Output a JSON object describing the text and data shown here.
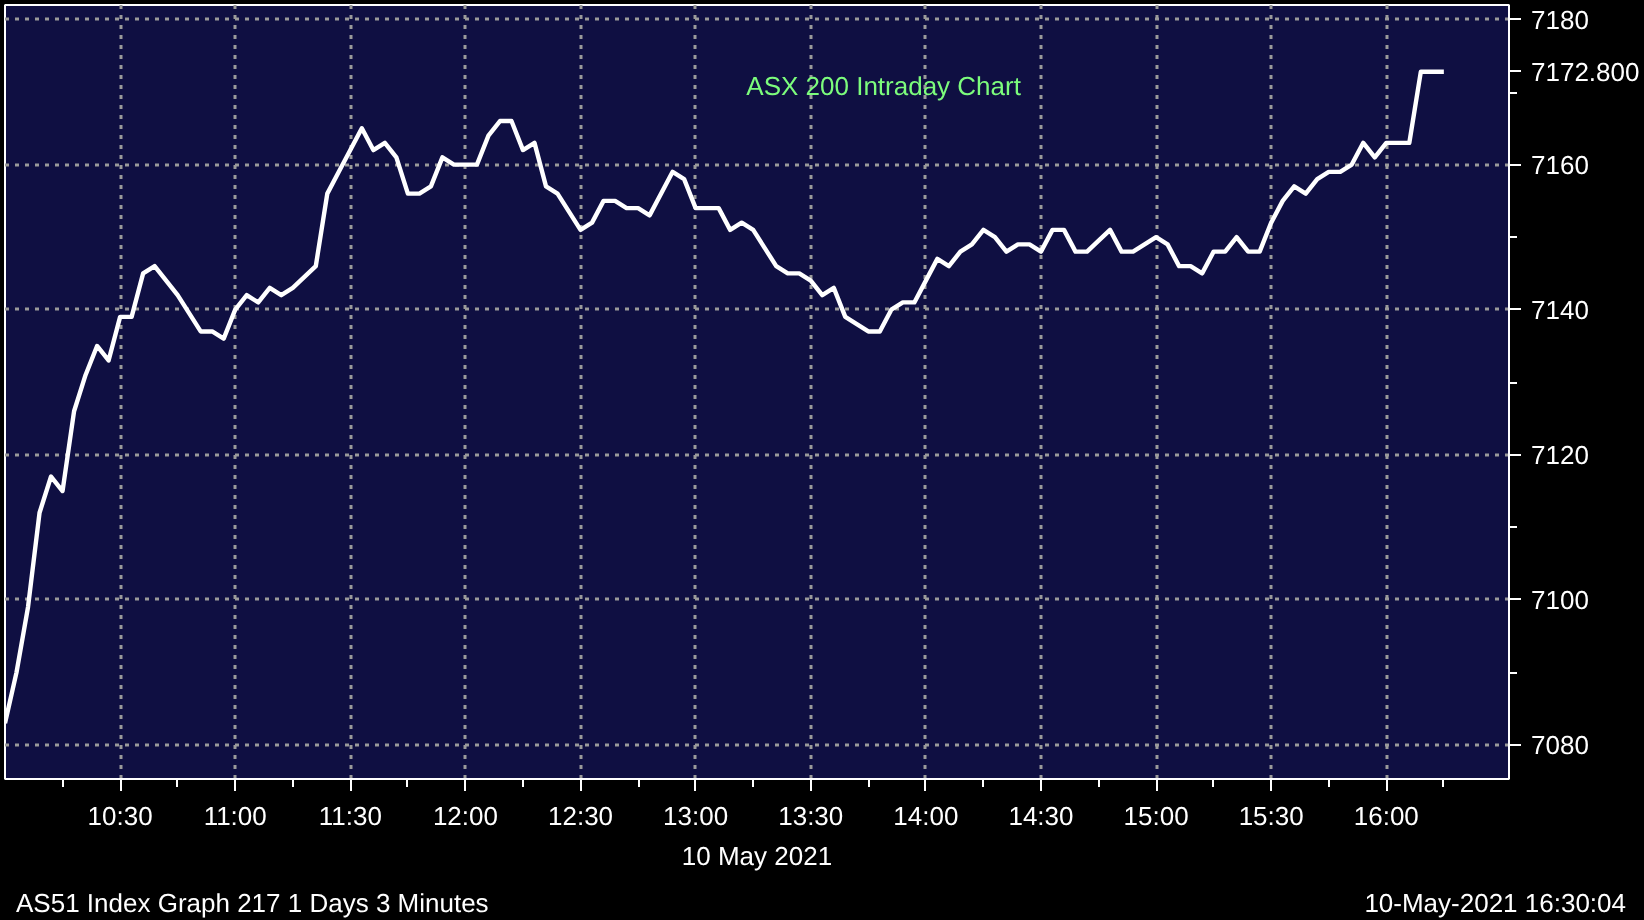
{
  "chart_data": {
    "type": "line",
    "title": "ASX 200 Intraday Chart",
    "xlabel": "10 May 2021",
    "annotations": [
      "AS51 Index Graph 217 1 Days 3 Minutes",
      "10-May-2021 16:30:04"
    ],
    "series": [
      {
        "color": "#ffffff",
        "x": [
          10.0,
          10.05,
          10.1,
          10.15,
          10.2,
          10.25,
          10.3,
          10.35,
          10.4,
          10.45,
          10.5,
          10.55,
          10.6,
          10.65,
          10.75,
          10.85,
          10.9,
          10.95,
          11.0,
          11.05,
          11.1,
          11.15,
          11.2,
          11.25,
          11.35,
          11.4,
          11.45,
          11.5,
          11.55,
          11.6,
          11.65,
          11.7,
          11.75,
          11.8,
          11.85,
          11.9,
          11.95,
          12.0,
          12.05,
          12.1,
          12.15,
          12.2,
          12.25,
          12.3,
          12.35,
          12.4,
          12.5,
          12.55,
          12.6,
          12.65,
          12.7,
          12.75,
          12.8,
          12.9,
          12.95,
          13.0,
          13.05,
          13.1,
          13.15,
          13.2,
          13.25,
          13.35,
          13.4,
          13.45,
          13.5,
          13.55,
          13.6,
          13.65,
          13.7,
          13.75,
          13.8,
          13.85,
          13.9,
          13.95,
          14.0,
          14.05,
          14.1,
          14.15,
          14.2,
          14.25,
          14.3,
          14.35,
          14.4,
          14.45,
          14.5,
          14.55,
          14.6,
          14.65,
          14.7,
          14.8,
          14.85,
          14.9,
          15.0,
          15.05,
          15.1,
          15.15,
          15.2,
          15.25,
          15.3,
          15.35,
          15.4,
          15.45,
          15.5,
          15.55,
          15.6,
          15.65,
          15.7,
          15.75,
          15.8,
          15.85,
          15.9,
          15.95,
          16.0,
          16.05,
          16.1,
          16.15,
          16.2,
          16.25
        ],
        "values": [
          7083,
          7090,
          7099,
          7112,
          7117,
          7115,
          7126,
          7131,
          7135,
          7133,
          7139,
          7139,
          7145,
          7146,
          7142,
          7137,
          7137,
          7136,
          7140,
          7142,
          7141,
          7143,
          7142,
          7143,
          7146,
          7156,
          7159,
          7162,
          7165,
          7162,
          7163,
          7161,
          7156,
          7156,
          7157,
          7161,
          7160,
          7160,
          7160,
          7164,
          7166,
          7166,
          7162,
          7163,
          7157,
          7156,
          7151,
          7152,
          7155,
          7155,
          7154,
          7154,
          7153,
          7159,
          7158,
          7154,
          7154,
          7154,
          7151,
          7152,
          7151,
          7146,
          7145,
          7145,
          7144,
          7142,
          7143,
          7139,
          7138,
          7137,
          7137,
          7140,
          7141,
          7141,
          7144,
          7147,
          7146,
          7148,
          7149,
          7151,
          7150,
          7148,
          7149,
          7149,
          7148,
          7151,
          7151,
          7148,
          7148,
          7151,
          7148,
          7148,
          7150,
          7149,
          7146,
          7146,
          7145,
          7148,
          7148,
          7150,
          7148,
          7148,
          7152,
          7155,
          7157,
          7156,
          7158,
          7159,
          7159,
          7160,
          7163,
          7161,
          7163,
          7163,
          7163,
          7172.8,
          7172.8,
          7172.8
        ]
      }
    ],
    "xlim": [
      10.0,
      16.533
    ],
    "ylim": [
      7075.3,
      7182
    ],
    "xticks": [
      {
        "value": 10.25,
        "label": null
      },
      {
        "value": 10.5,
        "label": "10:30"
      },
      {
        "value": 10.75,
        "label": null
      },
      {
        "value": 11.0,
        "label": "11:00"
      },
      {
        "value": 11.25,
        "label": null
      },
      {
        "value": 11.5,
        "label": "11:30"
      },
      {
        "value": 11.75,
        "label": null
      },
      {
        "value": 12.0,
        "label": "12:00"
      },
      {
        "value": 12.25,
        "label": null
      },
      {
        "value": 12.5,
        "label": "12:30"
      },
      {
        "value": 12.75,
        "label": null
      },
      {
        "value": 13.0,
        "label": "13:00"
      },
      {
        "value": 13.25,
        "label": null
      },
      {
        "value": 13.5,
        "label": "13:30"
      },
      {
        "value": 13.75,
        "label": null
      },
      {
        "value": 14.0,
        "label": "14:00"
      },
      {
        "value": 14.25,
        "label": null
      },
      {
        "value": 14.5,
        "label": "14:30"
      },
      {
        "value": 14.75,
        "label": null
      },
      {
        "value": 15.0,
        "label": "15:00"
      },
      {
        "value": 15.25,
        "label": null
      },
      {
        "value": 15.5,
        "label": "15:30"
      },
      {
        "value": 15.75,
        "label": null
      },
      {
        "value": 16.0,
        "label": "16:00"
      },
      {
        "value": 16.25,
        "label": null
      }
    ],
    "yticks": [
      7080,
      {
        "value": 7090,
        "label": null
      },
      7100,
      {
        "value": 7110,
        "label": null
      },
      7120,
      {
        "value": 7130,
        "label": null
      },
      7140,
      {
        "value": 7150,
        "label": null
      },
      7160,
      {
        "value": 7170,
        "label": null
      },
      {
        "value": 7172.8,
        "label": "7172.800"
      },
      7180
    ],
    "grid": true,
    "marker": "none",
    "line_style": "solid"
  }
}
